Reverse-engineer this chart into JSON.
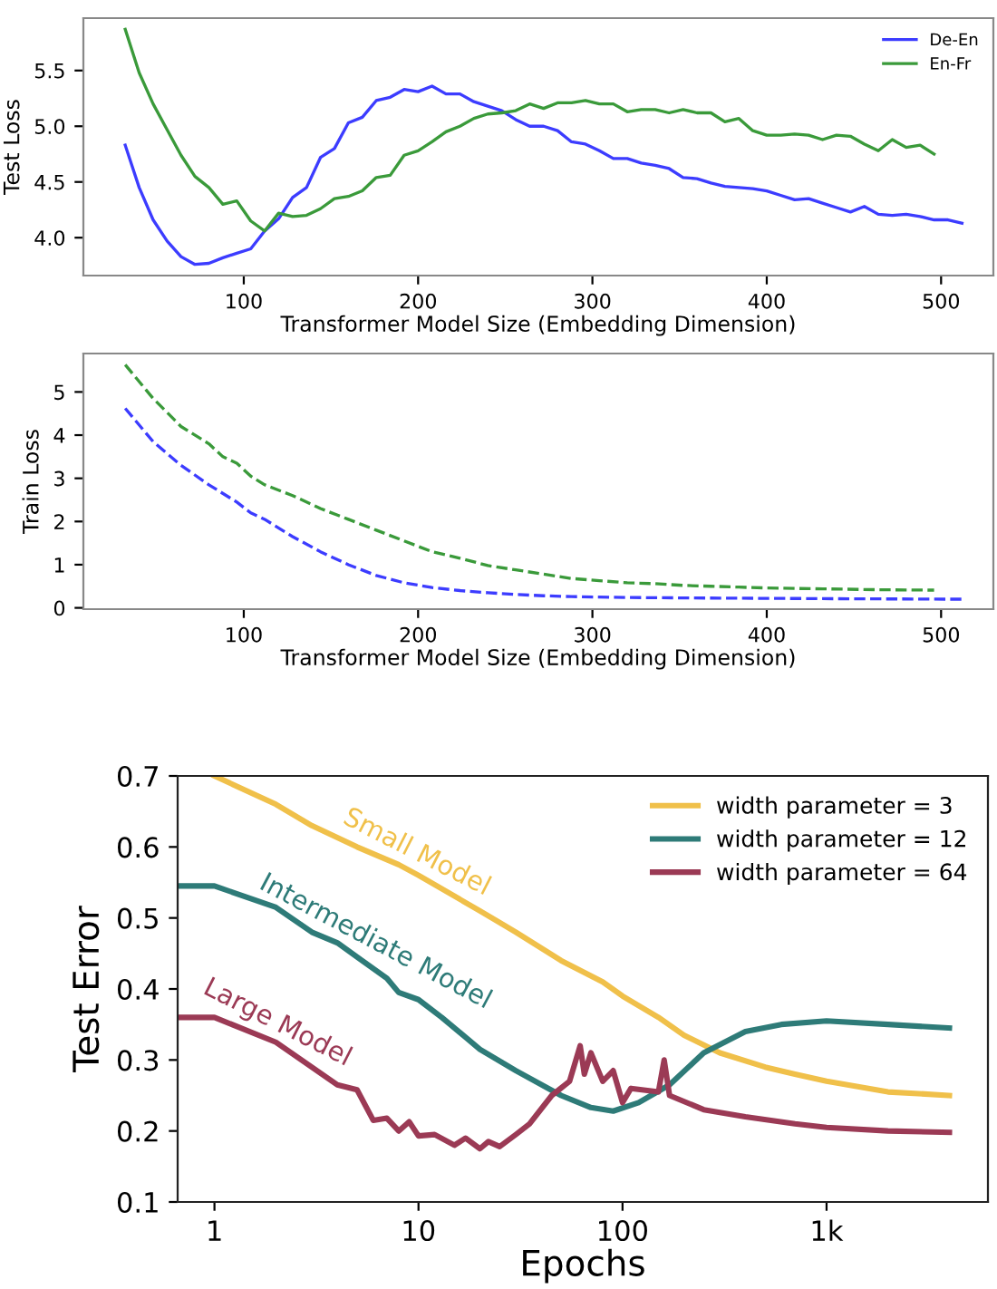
{
  "chart_data": [
    {
      "type": "line",
      "xlabel": "Transformer Model Size (Embedding Dimension)",
      "ylabel": "Test Loss",
      "xlim": [
        8,
        530
      ],
      "ylim": [
        3.66,
        5.97
      ],
      "xticks": [
        100,
        200,
        300,
        400,
        500
      ],
      "yticks": [
        {
          "value": 4,
          "label": "4.0"
        },
        4.5,
        {
          "value": 5,
          "label": "5.0"
        },
        5.5
      ],
      "grid": false,
      "legend": "top right",
      "line_style": "solid",
      "marker": "none",
      "series": [
        {
          "name": "De-En",
          "color": "#3c3cff",
          "x": [
            32,
            40,
            48,
            56,
            64,
            72,
            80,
            88,
            96,
            104,
            112,
            120,
            128,
            136,
            144,
            152,
            160,
            168,
            176,
            184,
            192,
            200,
            208,
            216,
            224,
            232,
            240,
            248,
            256,
            264,
            272,
            280,
            288,
            296,
            304,
            312,
            320,
            328,
            336,
            344,
            352,
            360,
            368,
            376,
            384,
            392,
            400,
            408,
            416,
            424,
            432,
            440,
            448,
            456,
            464,
            472,
            480,
            488,
            496,
            504,
            512
          ],
          "values": [
            4.83,
            4.45,
            4.16,
            3.97,
            3.83,
            3.76,
            3.77,
            3.82,
            3.86,
            3.9,
            4.06,
            4.17,
            4.36,
            4.45,
            4.72,
            4.8,
            5.03,
            5.08,
            5.23,
            5.26,
            5.33,
            5.31,
            5.36,
            5.29,
            5.29,
            5.22,
            5.18,
            5.14,
            5.06,
            5.0,
            5.0,
            4.96,
            4.86,
            4.84,
            4.78,
            4.71,
            4.71,
            4.67,
            4.65,
            4.62,
            4.54,
            4.53,
            4.49,
            4.46,
            4.45,
            4.44,
            4.42,
            4.38,
            4.34,
            4.35,
            4.31,
            4.27,
            4.23,
            4.28,
            4.21,
            4.2,
            4.21,
            4.19,
            4.16,
            4.16,
            4.13
          ]
        },
        {
          "name": "En-Fr",
          "color": "#3a9a3a",
          "x": [
            32,
            40,
            48,
            56,
            64,
            72,
            80,
            88,
            96,
            104,
            112,
            120,
            128,
            136,
            144,
            152,
            160,
            168,
            176,
            184,
            192,
            200,
            208,
            216,
            224,
            232,
            240,
            248,
            256,
            264,
            272,
            280,
            288,
            296,
            304,
            312,
            320,
            328,
            336,
            344,
            352,
            360,
            368,
            376,
            384,
            392,
            400,
            408,
            416,
            424,
            432,
            440,
            448,
            456,
            464,
            472,
            480,
            488,
            496
          ],
          "values": [
            5.87,
            5.48,
            5.2,
            4.97,
            4.74,
            4.55,
            4.45,
            4.3,
            4.33,
            4.15,
            4.06,
            4.22,
            4.19,
            4.2,
            4.26,
            4.35,
            4.37,
            4.42,
            4.54,
            4.56,
            4.74,
            4.78,
            4.86,
            4.95,
            5.0,
            5.07,
            5.11,
            5.12,
            5.14,
            5.2,
            5.16,
            5.21,
            5.21,
            5.23,
            5.2,
            5.2,
            5.13,
            5.15,
            5.15,
            5.12,
            5.15,
            5.12,
            5.12,
            5.04,
            5.07,
            4.96,
            4.92,
            4.92,
            4.93,
            4.92,
            4.88,
            4.92,
            4.91,
            4.84,
            4.78,
            4.88,
            4.81,
            4.83,
            4.75
          ]
        }
      ]
    },
    {
      "type": "line",
      "xlabel": "Transformer Model Size (Embedding Dimension)",
      "ylabel": "Train Loss",
      "xlim": [
        8,
        530
      ],
      "ylim": [
        -0.03,
        5.89
      ],
      "xticks": [
        100,
        200,
        300,
        400,
        500
      ],
      "yticks": [
        0,
        1,
        2,
        3,
        4,
        5
      ],
      "grid": false,
      "line_style": "dashed",
      "marker": "none",
      "series": [
        {
          "color": "#3c3cff",
          "x": [
            32,
            48,
            64,
            80,
            96,
            104,
            112,
            128,
            144,
            160,
            176,
            192,
            208,
            224,
            240,
            256,
            272,
            288,
            320,
            352,
            400,
            448,
            512
          ],
          "values": [
            4.62,
            3.85,
            3.3,
            2.85,
            2.45,
            2.2,
            2.05,
            1.65,
            1.3,
            1.0,
            0.75,
            0.58,
            0.47,
            0.4,
            0.35,
            0.31,
            0.28,
            0.26,
            0.24,
            0.23,
            0.22,
            0.21,
            0.2
          ]
        },
        {
          "color": "#3a9a3a",
          "x": [
            32,
            48,
            64,
            80,
            88,
            96,
            104,
            112,
            128,
            144,
            160,
            176,
            192,
            208,
            224,
            240,
            256,
            272,
            288,
            304,
            320,
            336,
            352,
            368,
            384,
            400,
            432,
            464,
            496
          ],
          "values": [
            5.63,
            4.85,
            4.2,
            3.8,
            3.5,
            3.35,
            3.05,
            2.85,
            2.6,
            2.3,
            2.05,
            1.8,
            1.55,
            1.3,
            1.15,
            0.98,
            0.88,
            0.78,
            0.68,
            0.63,
            0.58,
            0.56,
            0.52,
            0.5,
            0.48,
            0.46,
            0.44,
            0.42,
            0.41
          ]
        }
      ]
    },
    {
      "type": "line",
      "xlabel": "Epochs",
      "ylabel": "Test Error",
      "log": "x",
      "xlim": [
        0.66,
        6180
      ],
      "ylim": [
        0.1,
        0.7
      ],
      "xticks": [
        1,
        10,
        100,
        {
          "value": 1000,
          "label": "1k"
        }
      ],
      "yticks": [
        0.1,
        0.2,
        0.3,
        0.4,
        0.5,
        0.6,
        0.7
      ],
      "grid": false,
      "legend": "top right",
      "line_style": "solid",
      "marker": "none",
      "series": [
        {
          "name": "width parameter = 3",
          "color": "#f0c04a",
          "x": [
            1,
            2,
            3,
            5,
            8,
            10,
            20,
            30,
            50,
            80,
            100,
            150,
            200,
            300,
            500,
            700,
            1000,
            2000,
            4000
          ],
          "values": [
            0.7,
            0.66,
            0.63,
            0.6,
            0.575,
            0.56,
            0.51,
            0.48,
            0.44,
            0.41,
            0.39,
            0.36,
            0.335,
            0.31,
            0.29,
            0.28,
            0.27,
            0.255,
            0.25
          ]
        },
        {
          "name": "width parameter = 12",
          "color": "#2e7b78",
          "x": [
            0.67,
            1,
            2,
            3,
            4,
            5,
            7,
            8,
            10,
            13,
            20,
            30,
            50,
            70,
            90,
            120,
            170,
            250,
            400,
            600,
            1000,
            2000,
            4000
          ],
          "values": [
            0.545,
            0.545,
            0.515,
            0.48,
            0.465,
            0.445,
            0.415,
            0.395,
            0.385,
            0.36,
            0.315,
            0.285,
            0.25,
            0.233,
            0.228,
            0.24,
            0.265,
            0.31,
            0.34,
            0.35,
            0.355,
            0.35,
            0.345
          ]
        },
        {
          "name": "width parameter = 64",
          "color": "#9b3a55",
          "x": [
            0.67,
            1,
            2,
            4,
            5,
            6,
            7,
            8,
            9,
            10,
            12,
            15,
            17,
            20,
            22,
            25,
            30,
            35,
            45,
            55,
            62,
            65,
            70,
            80,
            90,
            100,
            110,
            150,
            160,
            170,
            250,
            400,
            700,
            1000,
            2000,
            4000
          ],
          "values": [
            0.36,
            0.36,
            0.325,
            0.265,
            0.258,
            0.215,
            0.218,
            0.2,
            0.213,
            0.193,
            0.195,
            0.18,
            0.19,
            0.175,
            0.185,
            0.178,
            0.195,
            0.21,
            0.25,
            0.27,
            0.32,
            0.28,
            0.31,
            0.27,
            0.285,
            0.24,
            0.26,
            0.255,
            0.3,
            0.25,
            0.23,
            0.22,
            0.21,
            0.205,
            0.2,
            0.198
          ]
        }
      ],
      "annotations": [
        "Small Model",
        "Intermediate Model",
        "Large Model"
      ]
    }
  ]
}
